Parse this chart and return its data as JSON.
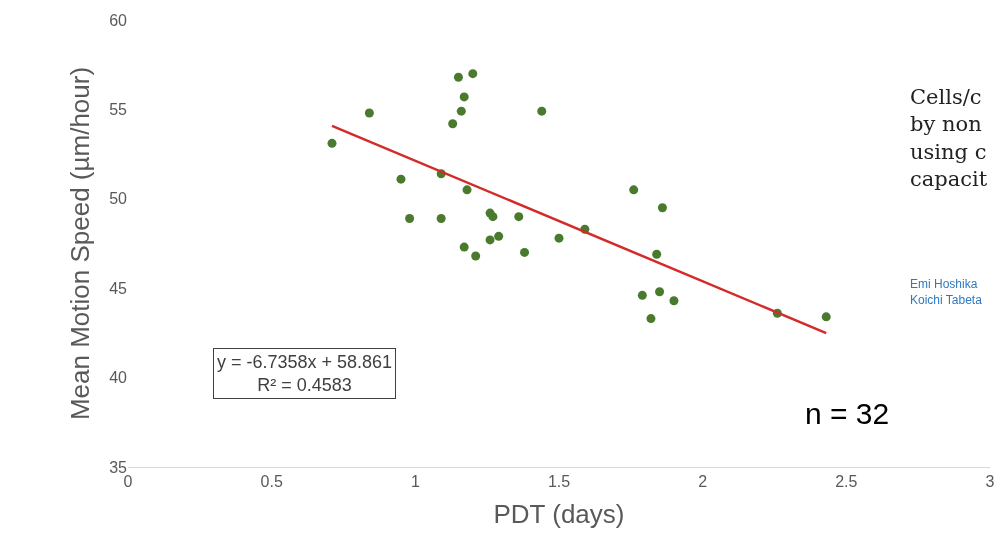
{
  "chart_data": {
    "type": "scatter",
    "xlabel": "PDT (days)",
    "ylabel": "Mean Motion Speed (µm/hour)",
    "xlim": [
      0,
      3
    ],
    "xticks": [
      0,
      0.5,
      1,
      1.5,
      2,
      2.5,
      3
    ],
    "ylim": [
      35,
      60
    ],
    "yticks": [
      35,
      40,
      45,
      50,
      55,
      60
    ],
    "series": [
      {
        "marker": "circle",
        "color": "#4a7a2e",
        "x": [
          0.71,
          0.84,
          0.95,
          0.98,
          1.09,
          1.09,
          1.13,
          1.15,
          1.16,
          1.17,
          1.2,
          1.18,
          1.17,
          1.21,
          1.26,
          1.27,
          1.26,
          1.29,
          1.36,
          1.38,
          1.44,
          1.5,
          1.59,
          1.76,
          1.86,
          1.84,
          1.79,
          1.85,
          1.82,
          1.9,
          2.26,
          2.43
        ],
        "values": [
          53.1,
          54.8,
          51.1,
          48.9,
          51.4,
          48.9,
          54.2,
          56.8,
          54.9,
          55.7,
          57.0,
          50.5,
          47.3,
          46.8,
          49.2,
          49.0,
          47.7,
          47.9,
          49.0,
          47.0,
          54.9,
          47.8,
          48.3,
          50.5,
          49.5,
          46.9,
          44.6,
          44.8,
          43.3,
          44.3,
          43.6,
          43.4
        ]
      },
      {
        "type": "line",
        "color": "#d42a2a",
        "line_style": "solid",
        "x": [
          0.71,
          2.43
        ],
        "values": [
          54.08,
          42.49
        ]
      }
    ],
    "annotations": [
      "y = -6.7358x + 58.861\nR² = 0.4583",
      "n = 32",
      "Cells/c\nby non\nusing c\ncapacit",
      "Emi Hoshika\nKoichi Tabeta"
    ]
  }
}
